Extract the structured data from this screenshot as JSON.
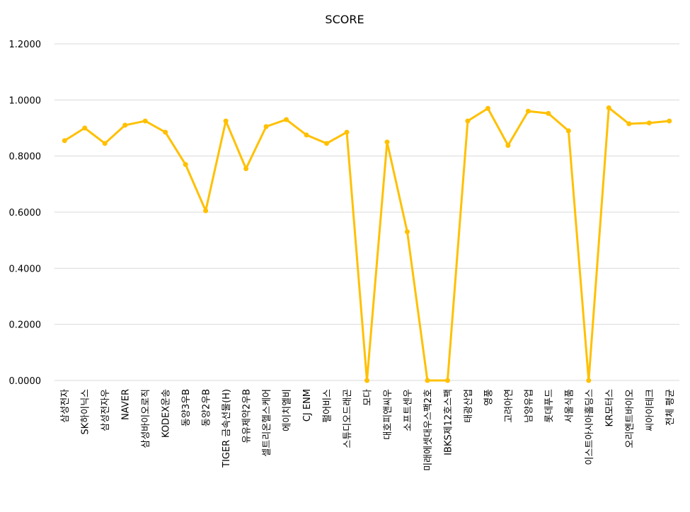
{
  "chart_data": {
    "type": "line",
    "title": "SCORE",
    "xlabel": "",
    "ylabel": "",
    "ylim": [
      0,
      1.2
    ],
    "yticks": [
      "0.0000",
      "0.2000",
      "0.4000",
      "0.6000",
      "0.8000",
      "1.0000",
      "1.2000"
    ],
    "ytick_values": [
      0,
      0.2,
      0.4,
      0.6,
      0.8,
      1.0,
      1.2
    ],
    "grid": true,
    "legend": "none",
    "color": "#FFC000",
    "categories": [
      "삼성전자",
      "SK하이닉스",
      "삼성전자우",
      "NAVER",
      "삼성바이오로직",
      "KODEX운송",
      "동양3우B",
      "동양2우B",
      "TIGER 금속선물(H)",
      "유유제약2우B",
      "셀트리온헬스케어",
      "에이치엘비",
      "CJ ENM",
      "펄어비스",
      "스튜디오드래곤",
      "모다",
      "대호피앤씨우",
      "소프트센우",
      "미래에셋대우스팩2호",
      "IBKS제12호스팩",
      "태광산업",
      "영풍",
      "고려아연",
      "남양유업",
      "롯데푸드",
      "서울식품",
      "이스트아시아홀딩스",
      "KR모터스",
      "오리엔트바이오",
      "씨아이테크",
      "전체 평균"
    ],
    "values": [
      0.855,
      0.9,
      0.845,
      0.91,
      0.925,
      0.885,
      0.77,
      0.605,
      0.925,
      0.755,
      0.905,
      0.93,
      0.875,
      0.845,
      0.885,
      0.0,
      0.85,
      0.53,
      0.0,
      0.0,
      0.925,
      0.97,
      0.838,
      0.96,
      0.952,
      0.89,
      0.0,
      0.972,
      0.915,
      0.918,
      0.925
    ]
  }
}
